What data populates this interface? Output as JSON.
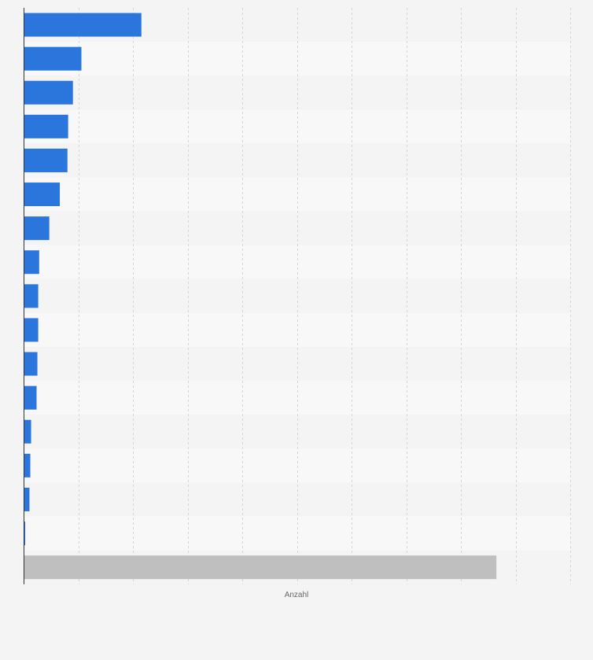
{
  "chart_data": {
    "type": "bar",
    "orientation": "horizontal",
    "categories": [
      "",
      "",
      "",
      "",
      "",
      "",
      "",
      "",
      "",
      "",
      "",
      "",
      "",
      "",
      "",
      "",
      ""
    ],
    "values": [
      86.2,
      42.3,
      36.1,
      32.6,
      32.1,
      26.5,
      18.8,
      11.4,
      10.7,
      10.7,
      10.1,
      9.5,
      5.5,
      4.9,
      4.3,
      1.2,
      346
    ],
    "highlight_index": 16,
    "xlabel": "Anzahl",
    "ylabel": "",
    "xlim": [
      0,
      400
    ],
    "grid": true,
    "legend": "none",
    "colors": {
      "bar": "#2a76dd",
      "highlight": "#bfbfbf",
      "band_dark": "#f4f4f4",
      "band_light": "#f8f8f8",
      "grid": "#d6d6d6",
      "axis": "#333333"
    }
  }
}
